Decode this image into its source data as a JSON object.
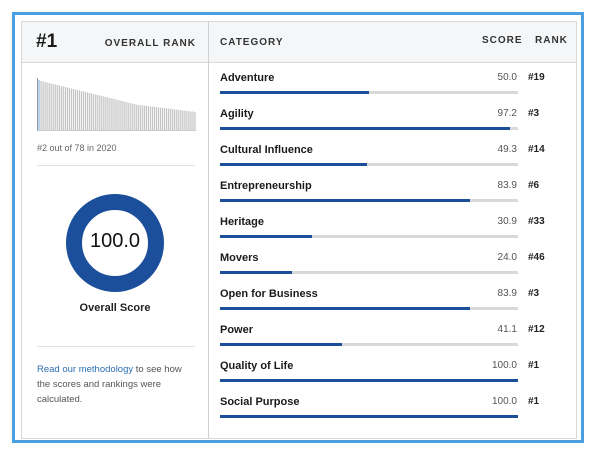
{
  "summary": {
    "rank": "#1",
    "rank_label": "OVERALL RANK",
    "previous_rank_text": "#2 out of 78 in 2020",
    "overall_score": "100.0",
    "overall_score_value": 100.0,
    "overall_score_label": "Overall Score",
    "methodology_link": "Read our methodology",
    "methodology_rest": " to see how the scores and rankings were calculated."
  },
  "table": {
    "headers": {
      "category": "CATEGORY",
      "score": "SCORE",
      "rank": "RANK"
    },
    "rows": [
      {
        "category": "Adventure",
        "score": "50.0",
        "value": 50.0,
        "rank": "#19"
      },
      {
        "category": "Agility",
        "score": "97.2",
        "value": 97.2,
        "rank": "#3"
      },
      {
        "category": "Cultural Influence",
        "score": "49.3",
        "value": 49.3,
        "rank": "#14"
      },
      {
        "category": "Entrepreneurship",
        "score": "83.9",
        "value": 83.9,
        "rank": "#6"
      },
      {
        "category": "Heritage",
        "score": "30.9",
        "value": 30.9,
        "rank": "#33"
      },
      {
        "category": "Movers",
        "score": "24.0",
        "value": 24.0,
        "rank": "#46"
      },
      {
        "category": "Open for Business",
        "score": "83.9",
        "value": 83.9,
        "rank": "#3"
      },
      {
        "category": "Power",
        "score": "41.1",
        "value": 41.1,
        "rank": "#12"
      },
      {
        "category": "Quality of Life",
        "score": "100.0",
        "value": 100.0,
        "rank": "#1"
      },
      {
        "category": "Social Purpose",
        "score": "100.0",
        "value": 100.0,
        "rank": "#1"
      }
    ]
  },
  "sparkline": {
    "highlight_index": 0,
    "values": [
      100,
      98,
      97,
      96,
      95,
      94,
      93,
      92,
      91,
      90,
      89,
      88,
      87,
      86,
      85,
      84,
      83,
      82,
      81,
      80,
      79,
      78,
      77,
      76,
      75,
      74,
      73,
      72,
      71,
      70,
      69,
      68,
      67,
      66,
      65,
      64,
      63,
      62,
      61,
      60,
      59,
      58,
      57,
      56,
      55,
      54,
      53,
      52,
      51,
      50,
      50,
      49,
      49,
      48,
      48,
      47,
      47,
      46,
      46,
      45,
      45,
      44,
      44,
      43,
      43,
      42,
      42,
      41,
      41,
      40,
      40,
      39,
      39,
      38,
      38,
      37,
      37,
      36
    ]
  },
  "colors": {
    "accent": "#1b4f9c",
    "frame": "#4a9fe0",
    "track": "#d9d9d9",
    "spark_bar": "#c4c4c4",
    "spark_highlight": "#8fb8df"
  }
}
